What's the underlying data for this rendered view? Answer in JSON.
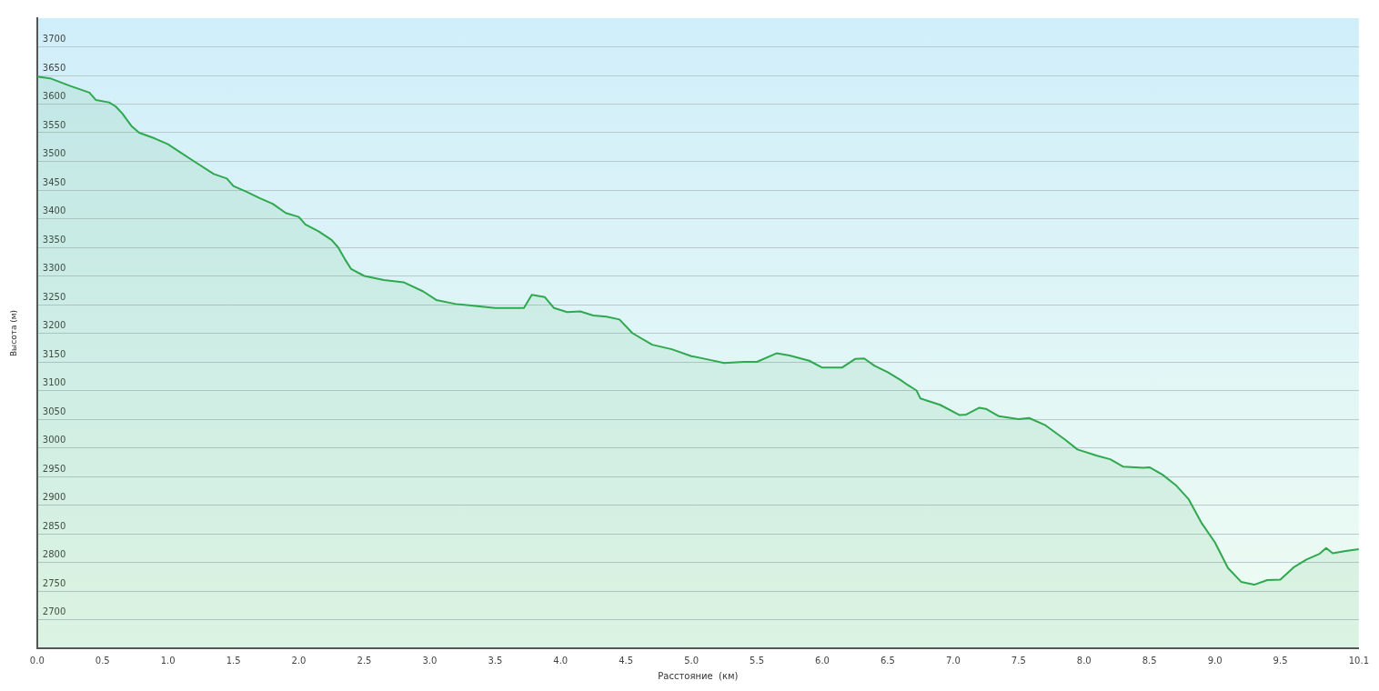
{
  "chart_data": {
    "type": "area",
    "xlabel": "Расстояние  (км)",
    "ylabel": "Высота (м)",
    "x": [
      0,
      0.1,
      0.25,
      0.4,
      0.45,
      0.55,
      0.6,
      0.65,
      0.72,
      0.78,
      0.9,
      1.0,
      1.1,
      1.2,
      1.35,
      1.45,
      1.5,
      1.6,
      1.7,
      1.8,
      1.9,
      2.0,
      2.05,
      2.15,
      2.25,
      2.3,
      2.35,
      2.4,
      2.5,
      2.65,
      2.8,
      2.95,
      3.05,
      3.2,
      3.5,
      3.72,
      3.78,
      3.88,
      3.95,
      4.05,
      4.15,
      4.25,
      4.35,
      4.45,
      4.55,
      4.7,
      4.85,
      5.0,
      5.15,
      5.25,
      5.4,
      5.5,
      5.65,
      5.75,
      5.9,
      6.0,
      6.15,
      6.25,
      6.32,
      6.4,
      6.5,
      6.6,
      6.65,
      6.72,
      6.75,
      6.9,
      7.05,
      7.1,
      7.2,
      7.25,
      7.35,
      7.5,
      7.58,
      7.7,
      7.85,
      7.95,
      8.1,
      8.2,
      8.3,
      8.45,
      8.5,
      8.6,
      8.7,
      8.8,
      8.9,
      9.0,
      9.1,
      9.2,
      9.3,
      9.4,
      9.5,
      9.6,
      9.7,
      9.8,
      9.85,
      9.9,
      10.0,
      10.1
    ],
    "series": [
      {
        "color": "#2fa84f",
        "values": [
          3648,
          3645,
          3632,
          3620,
          3607,
          3603,
          3596,
          3584,
          3562,
          3550,
          3540,
          3530,
          3515,
          3500,
          3478,
          3470,
          3457,
          3447,
          3436,
          3426,
          3410,
          3403,
          3390,
          3378,
          3363,
          3350,
          3330,
          3312,
          3300,
          3293,
          3289,
          3273,
          3258,
          3251,
          3244,
          3244,
          3267,
          3263,
          3244,
          3237,
          3238,
          3231,
          3229,
          3224,
          3200,
          3180,
          3172,
          3160,
          3153,
          3148,
          3150,
          3150,
          3165,
          3161,
          3152,
          3140,
          3140,
          3155,
          3156,
          3143,
          3132,
          3118,
          3110,
          3100,
          3086,
          3075,
          3057,
          3058,
          3070,
          3068,
          3055,
          3050,
          3052,
          3040,
          3015,
          2997,
          2986,
          2980,
          2967,
          2965,
          2966,
          2953,
          2935,
          2910,
          2868,
          2835,
          2790,
          2766,
          2761,
          2769,
          2770,
          2791,
          2805,
          2815,
          2825,
          2816,
          2820,
          2823
        ]
      }
    ],
    "xlim": [
      0,
      10.1
    ],
    "xticks": [
      {
        "value": 0,
        "label": "0.0"
      },
      0.5,
      {
        "value": 1,
        "label": "1.0"
      },
      1.5,
      {
        "value": 2,
        "label": "2.0"
      },
      2.5,
      {
        "value": 3,
        "label": "3.0"
      },
      3.5,
      {
        "value": 4,
        "label": "4.0"
      },
      4.5,
      {
        "value": 5,
        "label": "5.0"
      },
      5.5,
      {
        "value": 6,
        "label": "6.0"
      },
      6.5,
      {
        "value": 7,
        "label": "7.0"
      },
      7.5,
      {
        "value": 8,
        "label": "8.0"
      },
      8.5,
      {
        "value": 9,
        "label": "9.0"
      },
      9.5,
      10.1
    ],
    "ylim": [
      2650,
      3750
    ],
    "yticks": [
      2700,
      2750,
      2800,
      2850,
      2900,
      2950,
      3000,
      3050,
      3100,
      3150,
      3200,
      3250,
      3300,
      3350,
      3400,
      3450,
      3500,
      3550,
      3600,
      3650,
      3700
    ],
    "grid": "y",
    "marker": "none",
    "line_style": "solid",
    "legend": false
  }
}
